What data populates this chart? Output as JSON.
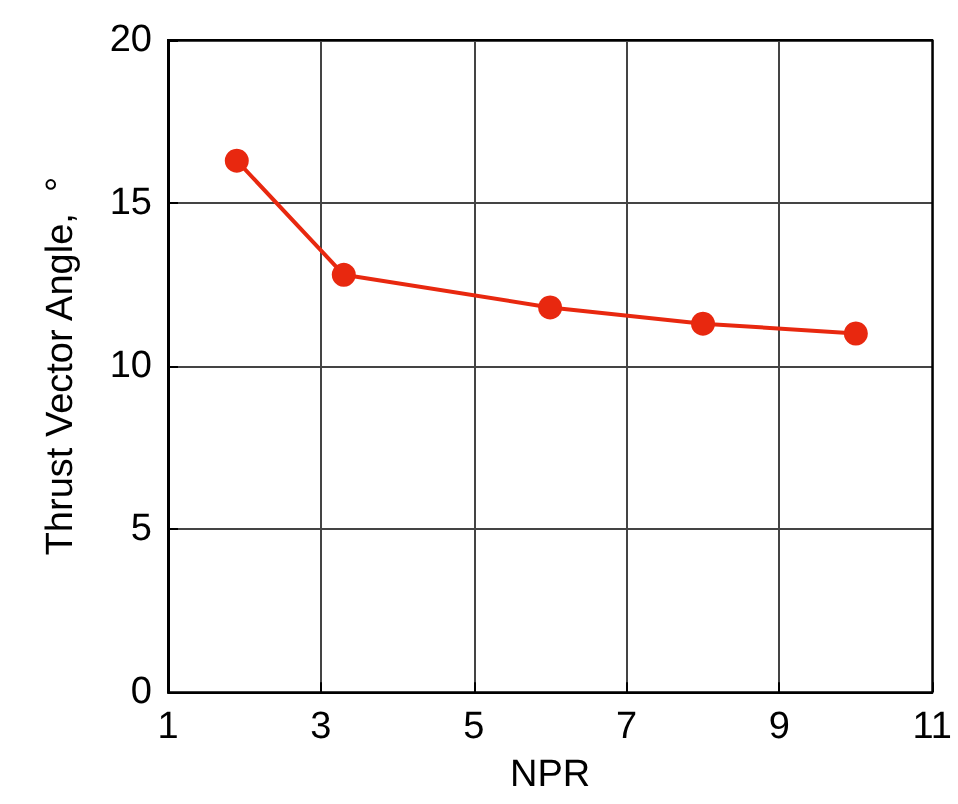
{
  "chart_data": {
    "type": "line",
    "xlabel": "NPR",
    "ylabel": "Thrust Vector Angle,  °",
    "x": [
      1.9,
      3.3,
      6,
      8,
      10
    ],
    "series": [
      {
        "color": "#e8280f",
        "values": [
          16.3,
          12.8,
          11.8,
          11.3,
          11.0
        ]
      }
    ],
    "xlim": [
      1,
      11
    ],
    "xticks": [
      1,
      3,
      5,
      7,
      9,
      11
    ],
    "ylim": [
      0,
      20
    ],
    "yticks": [
      0,
      5,
      10,
      15,
      20
    ],
    "grid": true,
    "marker": "circle",
    "line_style": "solid"
  }
}
